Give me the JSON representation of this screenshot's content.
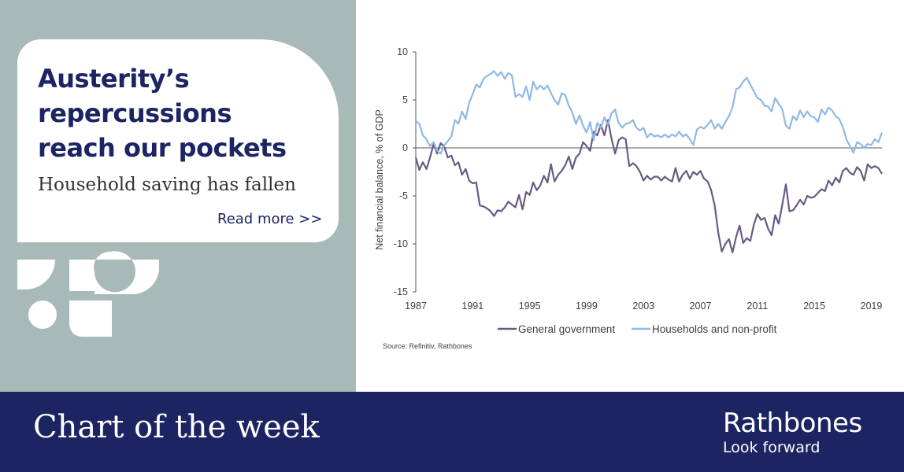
{
  "headline": [
    "Austerity’s",
    "repercussions",
    "reach our pockets"
  ],
  "subtitle": "Household saving has fallen",
  "read_more": "Read more >>",
  "footer": {
    "title": "Chart of the week",
    "brand": "Rathbones",
    "tagline": "Look forward"
  },
  "colors": {
    "navy": "#1c2462",
    "panel": "#a8bab8",
    "government": "#695a84",
    "households": "#8eb8e6"
  },
  "chart_data": {
    "type": "line",
    "ylabel": "Net financial balance, % of GDP",
    "ylim": [
      -15,
      10
    ],
    "yticks": [
      10,
      5,
      0,
      -5,
      -10,
      -15
    ],
    "xlim": [
      1987,
      2019.75
    ],
    "xticks": [
      1987,
      1991,
      1995,
      1999,
      2003,
      2007,
      2011,
      2015,
      2019
    ],
    "source": "Source: Refinitiv, Rathbones",
    "legend_position": "bottom",
    "series": [
      {
        "name": "General government",
        "color": "#695a84",
        "x": [
          1987,
          1987.25,
          1987.5,
          1987.75,
          1988,
          1988.25,
          1988.5,
          1988.75,
          1989,
          1989.25,
          1989.5,
          1989.75,
          1990,
          1990.25,
          1990.5,
          1990.75,
          1991,
          1991.25,
          1991.5,
          1991.75,
          1992,
          1992.25,
          1992.5,
          1992.75,
          1993,
          1993.25,
          1993.5,
          1993.75,
          1994,
          1994.25,
          1994.5,
          1994.75,
          1995,
          1995.25,
          1995.5,
          1995.75,
          1996,
          1996.25,
          1996.5,
          1996.75,
          1997,
          1997.25,
          1997.5,
          1997.75,
          1998,
          1998.25,
          1998.5,
          1998.75,
          1999,
          1999.25,
          1999.5,
          1999.75,
          2000,
          2000.25,
          2000.5,
          2000.75,
          2001,
          2001.25,
          2001.5,
          2001.75,
          2002,
          2002.25,
          2002.5,
          2002.75,
          2003,
          2003.25,
          2003.5,
          2003.75,
          2004,
          2004.25,
          2004.5,
          2004.75,
          2005,
          2005.25,
          2005.5,
          2005.75,
          2006,
          2006.25,
          2006.5,
          2006.75,
          2007,
          2007.25,
          2007.5,
          2007.75,
          2008,
          2008.25,
          2008.5,
          2008.75,
          2009,
          2009.25,
          2009.5,
          2009.75,
          2010,
          2010.25,
          2010.5,
          2010.75,
          2011,
          2011.25,
          2011.5,
          2011.75,
          2012,
          2012.25,
          2012.5,
          2012.75,
          2013,
          2013.25,
          2013.5,
          2013.75,
          2014,
          2014.25,
          2014.5,
          2014.75,
          2015,
          2015.25,
          2015.5,
          2015.75,
          2016,
          2016.25,
          2016.5,
          2016.75,
          2017,
          2017.25,
          2017.5,
          2017.75,
          2018,
          2018.25,
          2018.5,
          2018.75,
          2019,
          2019.25,
          2019.5,
          2019.75
        ],
        "y": [
          -1.0,
          -2.3,
          -1.5,
          -2.2,
          -1.0,
          0.4,
          -0.6,
          0.5,
          0.1,
          -1.0,
          -0.8,
          -1.8,
          -1.5,
          -2.8,
          -2.2,
          -3.4,
          -3.7,
          -3.6,
          -6.0,
          -6.1,
          -6.3,
          -6.6,
          -7.1,
          -6.5,
          -6.6,
          -6.2,
          -5.6,
          -5.9,
          -6.2,
          -4.9,
          -6.4,
          -4.6,
          -4.9,
          -3.6,
          -4.4,
          -3.9,
          -2.9,
          -3.6,
          -1.7,
          -3.5,
          -2.8,
          -2.4,
          -1.8,
          -0.9,
          -2.2,
          -1.0,
          -0.6,
          0.6,
          0.2,
          -0.3,
          1.7,
          1.3,
          2.4,
          1.3,
          2.9,
          1.0,
          -0.6,
          0.8,
          1.1,
          0.9,
          -1.9,
          -1.6,
          -1.9,
          -2.5,
          -3.4,
          -2.9,
          -3.3,
          -3.0,
          -3.0,
          -3.4,
          -3.0,
          -3.3,
          -3.5,
          -2.1,
          -3.5,
          -2.8,
          -2.4,
          -3.2,
          -2.5,
          -2.8,
          -2.4,
          -3.2,
          -3.5,
          -4.4,
          -6.0,
          -8.8,
          -10.8,
          -10.0,
          -9.5,
          -10.9,
          -9.3,
          -8.1,
          -9.9,
          -9.4,
          -9.7,
          -8.0,
          -6.9,
          -7.5,
          -7.3,
          -8.4,
          -9.1,
          -7.0,
          -7.9,
          -5.9,
          -3.8,
          -6.6,
          -6.5,
          -6.0,
          -5.4,
          -5.9,
          -5.0,
          -5.2,
          -5.1,
          -4.7,
          -4.3,
          -4.5,
          -3.4,
          -3.9,
          -3.1,
          -3.6,
          -2.4,
          -2.1,
          -2.6,
          -2.8,
          -2.0,
          -2.4,
          -3.4,
          -1.7,
          -2.1,
          -1.9,
          -2.1,
          -2.7
        ]
      },
      {
        "name": "Households and non-profit",
        "color": "#8eb8e6",
        "x": [
          1987,
          1987.25,
          1987.5,
          1987.75,
          1988,
          1988.25,
          1988.5,
          1988.75,
          1989,
          1989.25,
          1989.5,
          1989.75,
          1990,
          1990.25,
          1990.5,
          1990.75,
          1991,
          1991.25,
          1991.5,
          1991.75,
          1992,
          1992.25,
          1992.5,
          1992.75,
          1993,
          1993.25,
          1993.5,
          1993.75,
          1994,
          1994.25,
          1994.5,
          1994.75,
          1995,
          1995.25,
          1995.5,
          1995.75,
          1996,
          1996.25,
          1996.5,
          1996.75,
          1997,
          1997.25,
          1997.5,
          1997.75,
          1998,
          1998.25,
          1998.5,
          1998.75,
          1999,
          1999.25,
          1999.5,
          1999.75,
          2000,
          2000.25,
          2000.5,
          2000.75,
          2001,
          2001.25,
          2001.5,
          2001.75,
          2002,
          2002.25,
          2002.5,
          2002.75,
          2003,
          2003.25,
          2003.5,
          2003.75,
          2004,
          2004.25,
          2004.5,
          2004.75,
          2005,
          2005.25,
          2005.5,
          2005.75,
          2006,
          2006.25,
          2006.5,
          2006.75,
          2007,
          2007.25,
          2007.5,
          2007.75,
          2008,
          2008.25,
          2008.5,
          2008.75,
          2009,
          2009.25,
          2009.5,
          2009.75,
          2010,
          2010.25,
          2010.5,
          2010.75,
          2011,
          2011.25,
          2011.5,
          2011.75,
          2012,
          2012.25,
          2012.5,
          2012.75,
          2013,
          2013.25,
          2013.5,
          2013.75,
          2014,
          2014.25,
          2014.5,
          2014.75,
          2015,
          2015.25,
          2015.5,
          2015.75,
          2016,
          2016.25,
          2016.5,
          2016.75,
          2017,
          2017.25,
          2017.5,
          2017.75,
          2018,
          2018.25,
          2018.5,
          2018.75,
          2019,
          2019.25,
          2019.5,
          2019.75
        ],
        "y": [
          2.8,
          2.5,
          1.3,
          0.9,
          0.2,
          0.6,
          -0.3,
          -0.6,
          0.3,
          0.7,
          1.2,
          2.9,
          2.5,
          3.8,
          3.0,
          4.7,
          5.6,
          6.6,
          6.3,
          7.2,
          7.5,
          7.7,
          8.0,
          7.5,
          7.9,
          7.2,
          7.8,
          7.6,
          5.3,
          5.6,
          5.3,
          6.4,
          5.0,
          6.9,
          6.1,
          6.5,
          6.1,
          6.5,
          5.7,
          5.0,
          4.5,
          5.7,
          5.5,
          4.4,
          3.7,
          2.5,
          3.4,
          2.3,
          1.6,
          2.7,
          0.8,
          2.6,
          2.1,
          3.2,
          2.4,
          3.6,
          4.0,
          2.6,
          2.1,
          2.5,
          2.6,
          2.9,
          2.1,
          1.8,
          2.1,
          1.1,
          1.5,
          1.2,
          1.3,
          1.1,
          1.4,
          1.1,
          1.4,
          1.2,
          1.7,
          1.2,
          1.4,
          0.9,
          0.3,
          1.9,
          2.2,
          2.0,
          2.4,
          2.9,
          2.0,
          2.5,
          2.0,
          2.7,
          3.3,
          4.2,
          6.1,
          6.3,
          6.9,
          7.3,
          6.6,
          5.9,
          5.2,
          5.0,
          4.4,
          4.3,
          3.8,
          5.2,
          4.6,
          4.0,
          2.3,
          2.0,
          3.3,
          2.9,
          3.9,
          3.2,
          3.8,
          3.3,
          3.2,
          2.7,
          4.0,
          3.5,
          4.2,
          3.9,
          3.3,
          3.0,
          2.2,
          0.9,
          0.2,
          -0.5,
          0.6,
          0.4,
          0.0,
          0.4,
          0.3,
          0.9,
          0.6,
          1.6
        ]
      }
    ]
  }
}
